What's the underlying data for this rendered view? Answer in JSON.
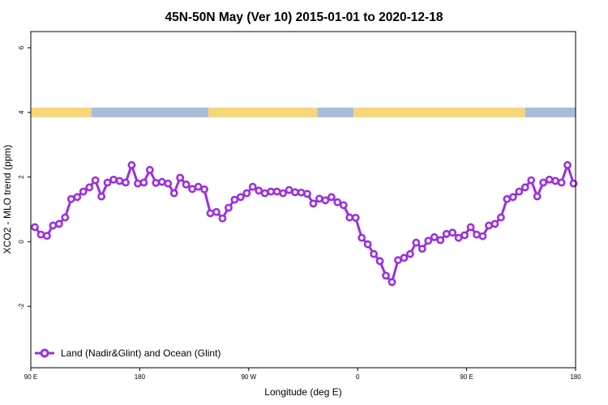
{
  "chart_data": {
    "type": "line",
    "title": "45N-50N May (Ver 10)   2015-01-01 to 2020-12-18",
    "xlabel": "Longitude (deg E)",
    "ylabel": "XCO2 - MLO trend (ppm)",
    "x_domain": [
      -90,
      180
    ],
    "xlim": [
      -90,
      180
    ],
    "ylim": [
      -3.9,
      6.5
    ],
    "x_ticks": [
      {
        "value": -90,
        "label": "90 E"
      },
      {
        "value": -36,
        "label": "180"
      },
      {
        "value": 18,
        "label": "90 W"
      },
      {
        "value": 72,
        "label": "0"
      },
      {
        "value": 126,
        "label": "90 E"
      },
      {
        "value": 180,
        "label": "180"
      }
    ],
    "y_ticks": [
      {
        "value": -2,
        "label": "-2"
      },
      {
        "value": 0,
        "label": "0"
      },
      {
        "value": 2,
        "label": "2"
      },
      {
        "value": 4,
        "label": "4"
      },
      {
        "value": 6,
        "label": "6"
      }
    ],
    "grid": false,
    "legend_position": "bottom-left",
    "land_ocean_band": {
      "y": 4,
      "land_color": "#f7d67a",
      "ocean_color": "#a9bcdb",
      "segments": [
        {
          "from": -90,
          "to": -60,
          "type": "land"
        },
        {
          "from": -60,
          "to": -2,
          "type": "ocean"
        },
        {
          "from": -2,
          "to": 52,
          "type": "land"
        },
        {
          "from": 52,
          "to": 70,
          "type": "ocean"
        },
        {
          "from": 70,
          "to": 155,
          "type": "land"
        },
        {
          "from": 155,
          "to": 180,
          "type": "ocean"
        }
      ]
    },
    "series": [
      {
        "name": "Land (Nadir&Glint) and Ocean (Glint)",
        "color": "#9b30e0",
        "x": [
          -88,
          -85,
          -82,
          -79,
          -76,
          -73,
          -70,
          -67,
          -64,
          -61,
          -58,
          -55,
          -52,
          -49,
          -46,
          -43,
          -40,
          -37,
          -34,
          -31,
          -28,
          -25,
          -22,
          -19,
          -16,
          -13,
          -10,
          -7,
          -4,
          -1,
          2,
          5,
          8,
          11,
          14,
          17,
          20,
          23,
          26,
          29,
          32,
          35,
          38,
          41,
          44,
          47,
          50,
          53,
          56,
          59,
          62,
          65,
          68,
          71,
          74,
          77,
          80,
          83,
          86,
          89,
          92,
          95,
          98,
          101,
          104,
          107,
          110,
          113,
          116,
          119,
          122,
          125,
          128,
          131,
          134,
          137,
          140,
          143,
          146,
          149,
          152,
          155,
          158,
          161,
          164,
          167,
          170,
          173,
          176,
          179
        ],
        "values": [
          0.45,
          0.22,
          0.18,
          0.5,
          0.55,
          0.75,
          1.32,
          1.38,
          1.55,
          1.68,
          1.9,
          1.4,
          1.83,
          1.92,
          1.88,
          1.83,
          2.37,
          1.8,
          1.83,
          2.22,
          1.82,
          1.85,
          1.8,
          1.5,
          1.98,
          1.77,
          1.63,
          1.7,
          1.62,
          0.88,
          0.92,
          0.72,
          1.05,
          1.3,
          1.38,
          1.5,
          1.7,
          1.58,
          1.5,
          1.55,
          1.55,
          1.5,
          1.6,
          1.53,
          1.52,
          1.48,
          1.18,
          1.33,
          1.28,
          1.38,
          1.22,
          1.13,
          0.75,
          0.74,
          0.12,
          -0.08,
          -0.38,
          -0.6,
          -1.05,
          -1.25,
          -0.57,
          -0.5,
          -0.38,
          -0.03,
          -0.22,
          0.03,
          0.14,
          0.05,
          0.24,
          0.28,
          0.12,
          0.2,
          0.45,
          0.22,
          0.17,
          0.5,
          0.55,
          0.75,
          1.32,
          1.38,
          1.55,
          1.68,
          1.9,
          1.4,
          1.83,
          1.92,
          1.88,
          1.83,
          2.37,
          1.8
        ]
      }
    ]
  }
}
